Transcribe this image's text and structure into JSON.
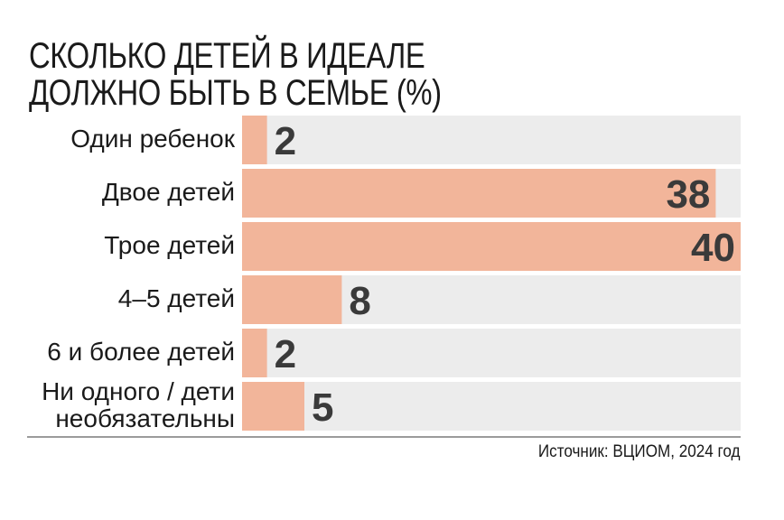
{
  "chart_data": {
    "type": "bar",
    "orientation": "horizontal",
    "title": [
      "СКОЛЬКО ДЕТЕЙ В ИДЕАЛЕ",
      "ДОЛЖНО БЫТЬ В СЕМЬЕ (%)"
    ],
    "categories": [
      [
        "Один ребенок"
      ],
      [
        "Двое детей"
      ],
      [
        "Трое детей"
      ],
      [
        "4–5 детей"
      ],
      [
        "6 и более детей"
      ],
      [
        "Ни одного / дети",
        "необязательны"
      ]
    ],
    "values": [
      2,
      38,
      40,
      8,
      2,
      5
    ],
    "xlim": [
      0,
      40
    ],
    "grid": false,
    "legend": "none",
    "source": "Источник: ВЦИОМ, 2024 год",
    "colors": {
      "bar": "#f2b59a",
      "track": "#ececec",
      "value_text": "#3a3a3a",
      "text": "#1a1a1a",
      "baseline": "#7a7a7a"
    }
  }
}
